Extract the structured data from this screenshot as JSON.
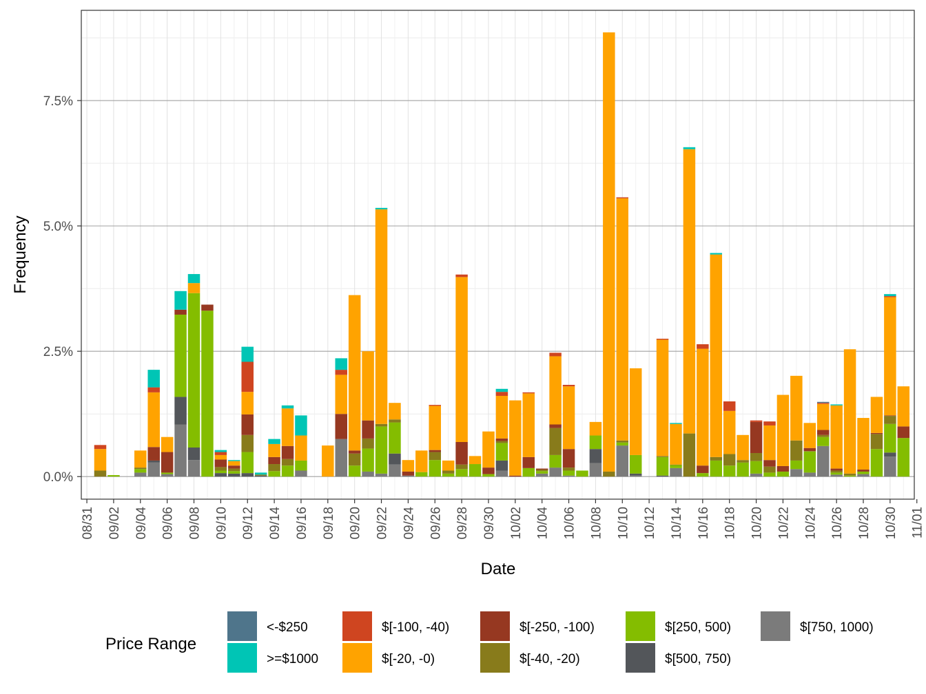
{
  "chart_data": {
    "type": "bar",
    "stacked": true,
    "xlabel": "Date",
    "ylabel": "Frequency",
    "ylim": [
      -0.45,
      9.3
    ],
    "y_unit": "%",
    "y_ticks": [
      0,
      2.5,
      5,
      7.5
    ],
    "y_tick_labels": [
      "0.0%",
      "2.5%",
      "5.0%",
      "7.5%"
    ],
    "x_tick_labels": [
      "08/31",
      "09/02",
      "09/04",
      "09/06",
      "09/08",
      "09/10",
      "09/12",
      "09/14",
      "09/16",
      "09/18",
      "09/20",
      "09/22",
      "09/24",
      "09/26",
      "09/28",
      "09/30",
      "10/02",
      "10/04",
      "10/06",
      "10/08",
      "10/10",
      "10/12",
      "10/14",
      "10/16",
      "10/18",
      "10/20",
      "10/22",
      "10/24",
      "10/26",
      "10/28",
      "10/30",
      "11/01"
    ],
    "grid": true,
    "legend": {
      "title": "Price Range",
      "position": "bottom",
      "columns": [
        [
          "<-$250",
          ">=$1000"
        ],
        [
          "$[-100, -40)",
          "$[-20, -0)"
        ],
        [
          "$[-250, -100)",
          "$[-40, -20)"
        ],
        [
          "$[250, 500)",
          "$[500, 750)"
        ],
        [
          "$[750, 1000)"
        ]
      ]
    },
    "series_colors": {
      "<-$250": "#4f758b",
      ">=$1000": "#00c5b5",
      "$[-100, -40)": "#cf4520",
      "$[-20, -0)": "#ffa300",
      "$[-250, -100)": "#963821",
      "$[-40, -20)": "#887b1b",
      "$[250, 500)": "#84bd00",
      "$[500, 750)": "#53565a",
      "$[750, 1000)": "#7b7b7b"
    },
    "stack_order": [
      "$[750, 1000)",
      "$[500, 750)",
      "$[250, 500)",
      "$[-40, -20)",
      "$[-250, -100)",
      "$[-20, -0)",
      "$[-100, -40)",
      ">=$1000",
      "<-$250"
    ],
    "dates": [
      "09/01",
      "09/02",
      "09/03",
      "09/04",
      "09/05",
      "09/06",
      "09/07",
      "09/08",
      "09/09",
      "09/10",
      "09/11",
      "09/12",
      "09/13",
      "09/14",
      "09/15",
      "09/16",
      "09/17",
      "09/18",
      "09/19",
      "09/20",
      "09/21",
      "09/22",
      "09/23",
      "09/24",
      "09/25",
      "09/26",
      "09/27",
      "09/28",
      "09/29",
      "09/30",
      "10/01",
      "10/02",
      "10/03",
      "10/04",
      "10/05",
      "10/06",
      "10/07",
      "10/08",
      "10/09",
      "10/10",
      "10/11",
      "10/12",
      "10/13",
      "10/14",
      "10/15",
      "10/16",
      "10/17",
      "10/18",
      "10/19",
      "10/20",
      "10/21",
      "10/22",
      "10/23",
      "10/24",
      "10/25",
      "10/26",
      "10/27",
      "10/28",
      "10/29",
      "10/30",
      "10/31"
    ],
    "bars": [
      {
        "date": "09/01",
        "$[-40, -20)": 0.12,
        "$[-20, -0)": 0.43,
        "$[-100, -40)": 0.08
      },
      {
        "date": "09/02",
        "$[250, 500)": 0.03
      },
      {
        "date": "09/03"
      },
      {
        "date": "09/04",
        "$[750, 1000)": 0.08,
        "$[250, 500)": 0.07,
        "$[-40, -20)": 0.03,
        "$[-20, -0)": 0.34
      },
      {
        "date": "09/05",
        "$[750, 1000)": 0.28,
        "$[500, 750)": 0.04,
        "$[-250, -100)": 0.27,
        "$[-20, -0)": 1.09,
        "$[-100, -40)": 0.1,
        ">=$1000": 0.35
      },
      {
        "date": "09/06",
        "$[750, 1000)": 0.05,
        "$[250, 500)": 0.03,
        "$[-250, -100)": 0.41,
        "$[-20, -0)": 0.3
      },
      {
        "date": "09/07",
        "$[750, 1000)": 1.04,
        "$[500, 750)": 0.55,
        "$[250, 500)": 1.64,
        "$[-250, -100)": 0.1,
        ">=$1000": 0.37
      },
      {
        "date": "09/08",
        "$[750, 1000)": 0.33,
        "$[500, 750)": 0.25,
        "$[250, 500)": 3.08,
        "$[-20, -0)": 0.2,
        ">=$1000": 0.18
      },
      {
        "date": "09/09",
        "$[250, 500)": 3.31,
        "$[-250, -100)": 0.12
      },
      {
        "date": "09/10",
        "$[500, 750)": 0.07,
        "$[250, 500)": 0.05,
        "$[-40, -20)": 0.07,
        "$[-250, -100)": 0.15,
        "$[-20, -0)": 0.09,
        "$[-100, -40)": 0.06,
        ">=$1000": 0.04
      },
      {
        "date": "09/11",
        "$[500, 750)": 0.06,
        "$[250, 500)": 0.05,
        "$[-40, -20)": 0.05,
        "$[-250, -100)": 0.06,
        "$[-20, -0)": 0.09,
        ">=$1000": 0.02
      },
      {
        "date": "09/12",
        "$[500, 750)": 0.07,
        "$[250, 500)": 0.42,
        "$[-40, -20)": 0.34,
        "$[-250, -100)": 0.41,
        "$[-20, -0)": 0.45,
        "$[-100, -40)": 0.6,
        ">=$1000": 0.3
      },
      {
        "date": "09/13",
        "$[500, 750)": 0.02,
        "$[-40, -20)": 0.02,
        ">=$1000": 0.04
      },
      {
        "date": "09/14",
        "$[250, 500)": 0.11,
        "$[-40, -20)": 0.14,
        "$[-250, -100)": 0.14,
        "$[-20, -0)": 0.26,
        ">=$1000": 0.1
      },
      {
        "date": "09/15",
        "$[250, 500)": 0.22,
        "$[-40, -20)": 0.13,
        "$[-250, -100)": 0.26,
        "$[-20, -0)": 0.75,
        ">=$1000": 0.06
      },
      {
        "date": "09/16",
        "$[750, 1000)": 0.12,
        "$[250, 500)": 0.2,
        "$[-20, -0)": 0.5,
        ">=$1000": 0.4
      },
      {
        "date": "09/17"
      },
      {
        "date": "09/18",
        "$[-20, -0)": 0.62
      },
      {
        "date": "09/19",
        "$[750, 1000)": 0.75,
        "$[-250, -100)": 0.5,
        "$[-20, -0)": 0.78,
        "$[-100, -40)": 0.1,
        ">=$1000": 0.23
      },
      {
        "date": "09/20",
        "$[250, 500)": 0.22,
        "$[-40, -20)": 0.24,
        "$[-250, -100)": 0.06,
        "$[-20, -0)": 3.1
      },
      {
        "date": "09/21",
        "$[750, 1000)": 0.1,
        "$[250, 500)": 0.46,
        "$[-40, -20)": 0.2,
        "$[-250, -100)": 0.36,
        "$[-20, -0)": 1.38
      },
      {
        "date": "09/22",
        "$[750, 1000)": 0.06,
        "$[250, 500)": 0.94,
        "$[-40, -20)": 0.05,
        "$[-20, -0)": 4.28,
        ">=$1000": 0.03
      },
      {
        "date": "09/23",
        "$[750, 1000)": 0.24,
        "$[500, 750)": 0.22,
        "$[250, 500)": 0.62,
        "$[-40, -20)": 0.06,
        "$[-20, -0)": 0.33
      },
      {
        "date": "09/24",
        "$[750, 1000)": 0.02,
        "$[-250, -100)": 0.08,
        "$[-20, -0)": 0.23
      },
      {
        "date": "09/25",
        "$[250, 500)": 0.09,
        "$[-20, -0)": 0.43
      },
      {
        "date": "09/26",
        "$[250, 500)": 0.33,
        "$[-40, -20)": 0.16,
        "$[-250, -100)": 0.04,
        "$[-20, -0)": 0.88,
        "$[-100, -40)": 0.02
      },
      {
        "date": "09/27",
        "$[250, 500)": 0.06,
        "$[-40, -20)": 0.06,
        "$[-20, -0)": 0.2
      },
      {
        "date": "09/28",
        "$[250, 500)": 0.15,
        "$[-40, -20)": 0.09,
        "$[-250, -100)": 0.45,
        "$[-20, -0)": 3.29,
        "$[-100, -40)": 0.05
      },
      {
        "date": "09/29",
        "$[250, 500)": 0.25,
        "$[-20, -0)": 0.16
      },
      {
        "date": "09/30",
        "$[250, 500)": 0.05,
        "$[-250, -100)": 0.13,
        "$[-20, -0)": 0.72
      },
      {
        "date": "10/01",
        "$[750, 1000)": 0.12,
        "$[500, 750)": 0.2,
        "$[250, 500)": 0.35,
        "$[-40, -20)": 0.04,
        "$[-250, -100)": 0.05,
        "$[-20, -0)": 0.85,
        "$[-100, -40)": 0.08,
        ">=$1000": 0.06
      },
      {
        "date": "10/02",
        "$[-250, -100)": 0.02,
        "$[-20, -0)": 1.5
      },
      {
        "date": "10/03",
        "$[250, 500)": 0.17,
        "$[-250, -100)": 0.22,
        "$[-20, -0)": 1.27,
        "$[-100, -40)": 0.02
      },
      {
        "date": "10/04",
        "$[750, 1000)": 0.06,
        "$[250, 500)": 0.05,
        "$[-40, -20)": 0.03,
        "$[-250, -100)": 0.02
      },
      {
        "date": "10/05",
        "$[750, 1000)": 0.18,
        "$[250, 500)": 0.25,
        "$[-40, -20)": 0.54,
        "$[-250, -100)": 0.07,
        "$[-20, -0)": 1.36,
        "$[-100, -40)": 0.07
      },
      {
        "date": "10/06",
        "$[750, 1000)": 0.02,
        "$[250, 500)": 0.1,
        "$[-40, -20)": 0.06,
        "$[-250, -100)": 0.37,
        "$[-20, -0)": 1.25,
        "$[-100, -40)": 0.03
      },
      {
        "date": "10/07",
        "$[250, 500)": 0.12
      },
      {
        "date": "10/08",
        "$[750, 1000)": 0.27,
        "$[500, 750)": 0.28,
        "$[250, 500)": 0.27,
        "$[-20, -0)": 0.27
      },
      {
        "date": "10/09",
        "$[-40, -20)": 0.1,
        "$[-20, -0)": 8.76
      },
      {
        "date": "10/10",
        "$[750, 1000)": 0.62,
        "$[250, 500)": 0.06,
        "$[-40, -20)": 0.04,
        "$[-20, -0)": 4.83,
        "$[-100, -40)": 0.02
      },
      {
        "date": "10/11",
        "$[750, 1000)": 0.02,
        "$[500, 750)": 0.04,
        "$[250, 500)": 0.37,
        "$[-20, -0)": 1.73
      },
      {
        "date": "10/12"
      },
      {
        "date": "10/13",
        "$[500, 750)": 0.02,
        "$[250, 500)": 0.37,
        "$[-40, -20)": 0.02,
        "$[-20, -0)": 2.32,
        "$[-100, -40)": 0.02
      },
      {
        "date": "10/14",
        "$[750, 1000)": 0.17,
        "$[250, 500)": 0.06,
        "$[-40, -20)": 0.01,
        "$[-20, -0)": 0.81,
        ">=$1000": 0.02
      },
      {
        "date": "10/15",
        "$[-40, -20)": 0.86,
        "$[-20, -0)": 5.67,
        ">=$1000": 0.04
      },
      {
        "date": "10/16",
        "$[250, 500)": 0.07,
        "$[-250, -100)": 0.15,
        "$[-20, -0)": 2.33,
        "$[-100, -40)": 0.09
      },
      {
        "date": "10/17",
        "$[250, 500)": 0.32,
        "$[-40, -20)": 0.07,
        "$[-20, -0)": 4.04,
        ">=$1000": 0.03
      },
      {
        "date": "10/18",
        "$[250, 500)": 0.22,
        "$[-40, -20)": 0.23,
        "$[-20, -0)": 0.86,
        "$[-100, -40)": 0.19
      },
      {
        "date": "10/19",
        "$[250, 500)": 0.28,
        "$[-40, -20)": 0.05,
        "$[-20, -0)": 0.5
      },
      {
        "date": "10/20",
        "$[750, 1000)": 0.06,
        "$[250, 500)": 0.25,
        "$[-40, -20)": 0.16,
        "$[-250, -100)": 0.62,
        "$[-100, -40)": 0.03
      },
      {
        "date": "10/21",
        "$[250, 500)": 0.08,
        "$[-40, -20)": 0.12,
        "$[-250, -100)": 0.13,
        "$[-20, -0)": 0.69,
        "$[-100, -40)": 0.08
      },
      {
        "date": "10/22",
        "$[250, 500)": 0.1,
        "$[-250, -100)": 0.11,
        "$[-20, -0)": 1.42
      },
      {
        "date": "10/23",
        "$[750, 1000)": 0.15,
        "$[250, 500)": 0.17,
        "$[-40, -20)": 0.4,
        "$[-20, -0)": 1.29
      },
      {
        "date": "10/24",
        "$[750, 1000)": 0.08,
        "$[250, 500)": 0.42,
        "$[-40, -20)": 0.01,
        "$[-250, -100)": 0.06,
        "$[-20, -0)": 0.5
      },
      {
        "date": "10/25",
        "$[750, 1000)": 0.61,
        "$[250, 500)": 0.18,
        "$[-40, -20)": 0.04,
        "$[-250, -100)": 0.1,
        "$[-20, -0)": 0.52,
        "$[-100, -40)": 0.02,
        "<-$250": 0.02
      },
      {
        "date": "10/26",
        "$[750, 1000)": 0.04,
        "$[250, 500)": 0.04,
        "$[-40, -20)": 0.04,
        "$[-250, -100)": 0.04,
        "$[-20, -0)": 1.26,
        ">=$1000": 0.02
      },
      {
        "date": "10/27",
        "$[250, 500)": 0.02,
        "$[-40, -20)": 0.04,
        "$[-20, -0)": 2.48
      },
      {
        "date": "10/28",
        "$[750, 1000)": 0.05,
        "$[250, 500)": 0.05,
        "$[-250, -100)": 0.04,
        "$[-20, -0)": 1.03
      },
      {
        "date": "10/29",
        "$[250, 500)": 0.55,
        "$[-40, -20)": 0.3,
        "$[-250, -100)": 0.02,
        "$[-20, -0)": 0.72
      },
      {
        "date": "10/30",
        "$[750, 1000)": 0.4,
        "$[500, 750)": 0.08,
        "$[250, 500)": 0.57,
        "$[-40, -20)": 0.16,
        "$[-250, -100)": 0.01,
        "$[-20, -0)": 2.36,
        "$[-100, -40)": 0.02,
        ">=$1000": 0.04
      },
      {
        "date": "10/31",
        "$[250, 500)": 0.77,
        "$[-250, -100)": 0.23,
        "$[-20, -0)": 0.8
      }
    ]
  }
}
